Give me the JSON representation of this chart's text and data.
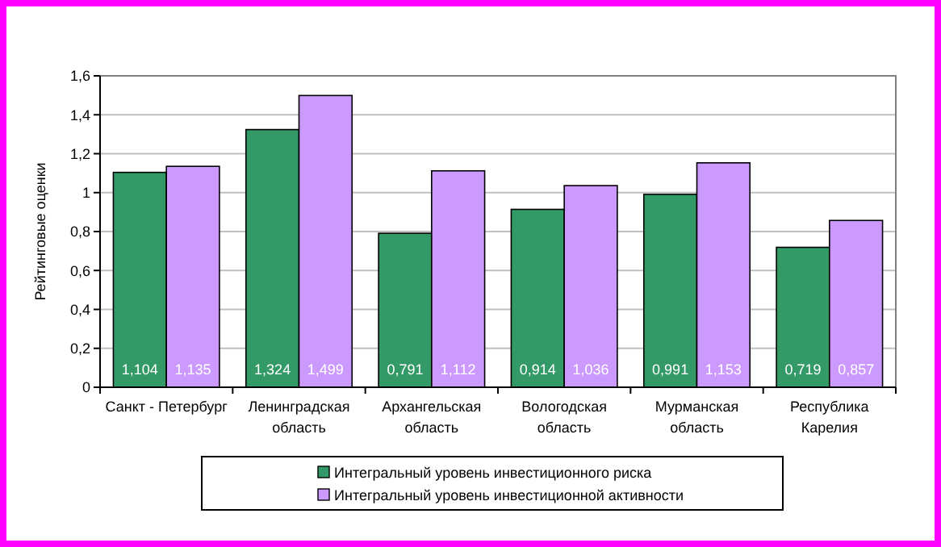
{
  "chart_data": {
    "type": "bar",
    "ylabel": "Рейтинговые оценки",
    "categories": [
      "Санкт - Петербург",
      "Ленинградская\nобласть",
      "Архангельская\nобласть",
      "Вологодская\nобласть",
      "Мурманская\nобласть",
      "Республика\nКарелия"
    ],
    "series": [
      {
        "name": "Интегральный уровень инвестиционного риска",
        "color": "#339966",
        "values": [
          1.104,
          1.324,
          0.791,
          0.914,
          0.991,
          0.719
        ],
        "value_labels": [
          "1,104",
          "1,324",
          "0,791",
          "0,914",
          "0,991",
          "0,719"
        ]
      },
      {
        "name": "Интегральный уровень инвестиционной активности",
        "color": "#cc99ff",
        "values": [
          1.135,
          1.499,
          1.112,
          1.036,
          1.153,
          0.857
        ],
        "value_labels": [
          "1,135",
          "1,499",
          "1,112",
          "1,036",
          "1,153",
          "0,857"
        ]
      }
    ],
    "ylim": [
      0,
      1.6
    ],
    "yticks": [
      0,
      {
        "value": 0.2,
        "label": "0,2"
      },
      {
        "value": 0.4,
        "label": "0,4"
      },
      {
        "value": 0.6,
        "label": "0,6"
      },
      {
        "value": 0.8,
        "label": "0,8"
      },
      1,
      {
        "value": 1.2,
        "label": "1,2"
      },
      {
        "value": 1.4,
        "label": "1,4"
      },
      {
        "value": 1.6,
        "label": "1,6"
      }
    ],
    "grid": "y",
    "legend": "bottom"
  }
}
